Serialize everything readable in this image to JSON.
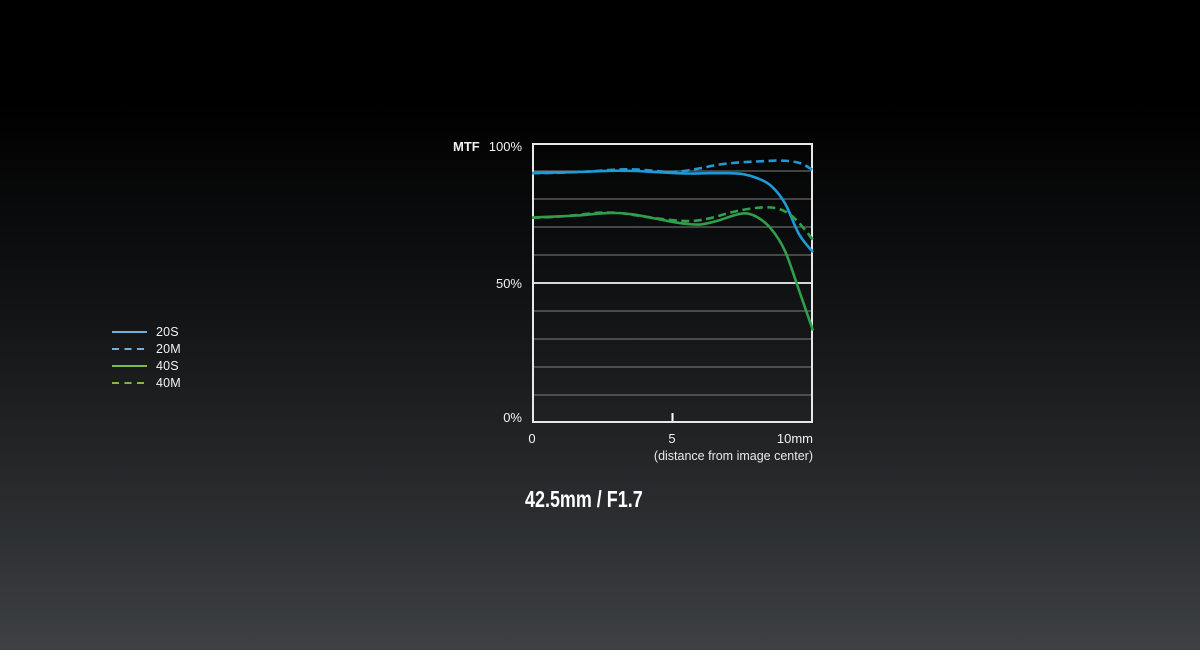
{
  "title": "42.5mm / F1.7",
  "chart": {
    "y_axis_label": "MTF",
    "y_ticks": [
      "100%",
      "50%",
      "0%"
    ],
    "x_ticks": [
      "0",
      "5",
      "10mm"
    ],
    "x_caption": "(distance from image center)"
  },
  "legend": {
    "items": [
      {
        "label": "20S",
        "color": "#74aed4",
        "dash": false
      },
      {
        "label": "20M",
        "color": "#74aed4",
        "dash": true
      },
      {
        "label": "40S",
        "color": "#82b742",
        "dash": false
      },
      {
        "label": "40M",
        "color": "#82b742",
        "dash": true
      }
    ]
  },
  "colors": {
    "curve_blue": "#1f9ad6",
    "curve_green": "#2f9f4a",
    "grid_minor": "#7f7f7f",
    "grid_major": "#d6d6d6",
    "plot_border": "#e8e8e8",
    "background_top": "#000000",
    "background_bottom": "#3e4144"
  },
  "chart_data": {
    "type": "line",
    "title": "MTF chart — 42.5mm / F1.7",
    "xlabel": "(distance from image center)",
    "ylabel": "MTF",
    "x_unit": "mm",
    "xlim": [
      0,
      10
    ],
    "ylim": [
      0,
      100
    ],
    "x_axis_ticks": [
      0,
      5,
      10
    ],
    "y_axis_ticks_labeled": [
      0,
      50,
      100
    ],
    "y_gridlines": [
      10,
      20,
      30,
      40,
      50,
      60,
      70,
      80,
      90
    ],
    "y_major_gridline": 50,
    "grid": "horizontal only",
    "legend_position": "outside-left",
    "series": [
      {
        "name": "20S",
        "color": "#1f9ad6",
        "dash": false,
        "points": [
          [
            0,
            89.3
          ],
          [
            0.7,
            89.4
          ],
          [
            1.5,
            89.6
          ],
          [
            2.3,
            89.9
          ],
          [
            3,
            90.1
          ],
          [
            3.7,
            90.0
          ],
          [
            4.4,
            89.6
          ],
          [
            5,
            89.3
          ],
          [
            5.6,
            89.1
          ],
          [
            6.3,
            89.2
          ],
          [
            7,
            89.2
          ],
          [
            7.5,
            88.9
          ],
          [
            8,
            87.5
          ],
          [
            8.5,
            84.8
          ],
          [
            9,
            78.5
          ],
          [
            9.5,
            67.5
          ],
          [
            10,
            61.0
          ]
        ]
      },
      {
        "name": "20M",
        "color": "#1f9ad6",
        "dash": true,
        "points": [
          [
            0,
            89.2
          ],
          [
            1,
            89.4
          ],
          [
            2,
            89.8
          ],
          [
            2.8,
            90.4
          ],
          [
            3.5,
            90.6
          ],
          [
            4.2,
            90.2
          ],
          [
            4.8,
            89.7
          ],
          [
            5.4,
            90.0
          ],
          [
            6,
            91.0
          ],
          [
            6.6,
            92.2
          ],
          [
            7.3,
            93.0
          ],
          [
            8,
            93.4
          ],
          [
            8.7,
            93.7
          ],
          [
            9.2,
            93.5
          ],
          [
            9.6,
            92.6
          ],
          [
            10,
            90.3
          ]
        ]
      },
      {
        "name": "40S",
        "color": "#2f9f4a",
        "dash": false,
        "points": [
          [
            0,
            73.4
          ],
          [
            0.8,
            73.7
          ],
          [
            1.6,
            74.1
          ],
          [
            2.4,
            74.8
          ],
          [
            3,
            75.0
          ],
          [
            3.6,
            74.5
          ],
          [
            4.2,
            73.4
          ],
          [
            4.8,
            72.2
          ],
          [
            5.4,
            71.2
          ],
          [
            6,
            70.9
          ],
          [
            6.6,
            72.2
          ],
          [
            7.2,
            74.2
          ],
          [
            7.6,
            74.9
          ],
          [
            8,
            73.6
          ],
          [
            8.5,
            69.5
          ],
          [
            9,
            61.5
          ],
          [
            9.5,
            47.5
          ],
          [
            10,
            33.0
          ]
        ]
      },
      {
        "name": "40M",
        "color": "#2f9f4a",
        "dash": true,
        "points": [
          [
            0,
            73.3
          ],
          [
            0.8,
            73.6
          ],
          [
            1.6,
            74.3
          ],
          [
            2.4,
            75.1
          ],
          [
            3.1,
            75.0
          ],
          [
            3.8,
            74.0
          ],
          [
            4.5,
            73.0
          ],
          [
            5.2,
            72.3
          ],
          [
            5.8,
            72.2
          ],
          [
            6.4,
            73.3
          ],
          [
            7,
            75.0
          ],
          [
            7.6,
            76.3
          ],
          [
            8.2,
            77.0
          ],
          [
            8.7,
            76.7
          ],
          [
            9.1,
            75.0
          ],
          [
            9.5,
            71.5
          ],
          [
            10,
            65.4
          ]
        ]
      }
    ]
  }
}
